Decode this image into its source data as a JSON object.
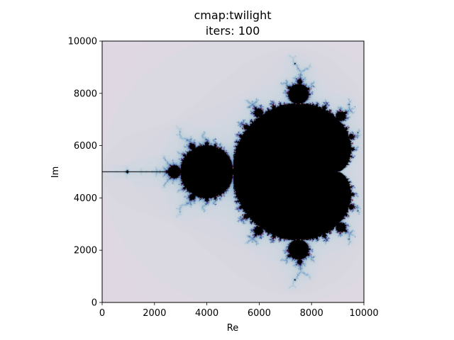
{
  "chart_data": {
    "type": "heatmap",
    "title_lines": [
      "cmap:twilight",
      "iters: 100"
    ],
    "xlabel": "Re",
    "ylabel": "Im",
    "xlim": [
      0,
      10000
    ],
    "ylim": [
      0,
      10000
    ],
    "xticks": [
      "0",
      "2000",
      "4000",
      "6000",
      "8000",
      "10000"
    ],
    "yticks": [
      "0",
      "2000",
      "4000",
      "6000",
      "8000",
      "10000"
    ],
    "xtick_values": [
      0,
      2000,
      4000,
      6000,
      8000,
      10000
    ],
    "ytick_values": [
      0,
      2000,
      4000,
      6000,
      8000,
      10000
    ],
    "colormap": "twilight",
    "max_iterations": 100,
    "inside_color": "#000000",
    "grid": false
  }
}
